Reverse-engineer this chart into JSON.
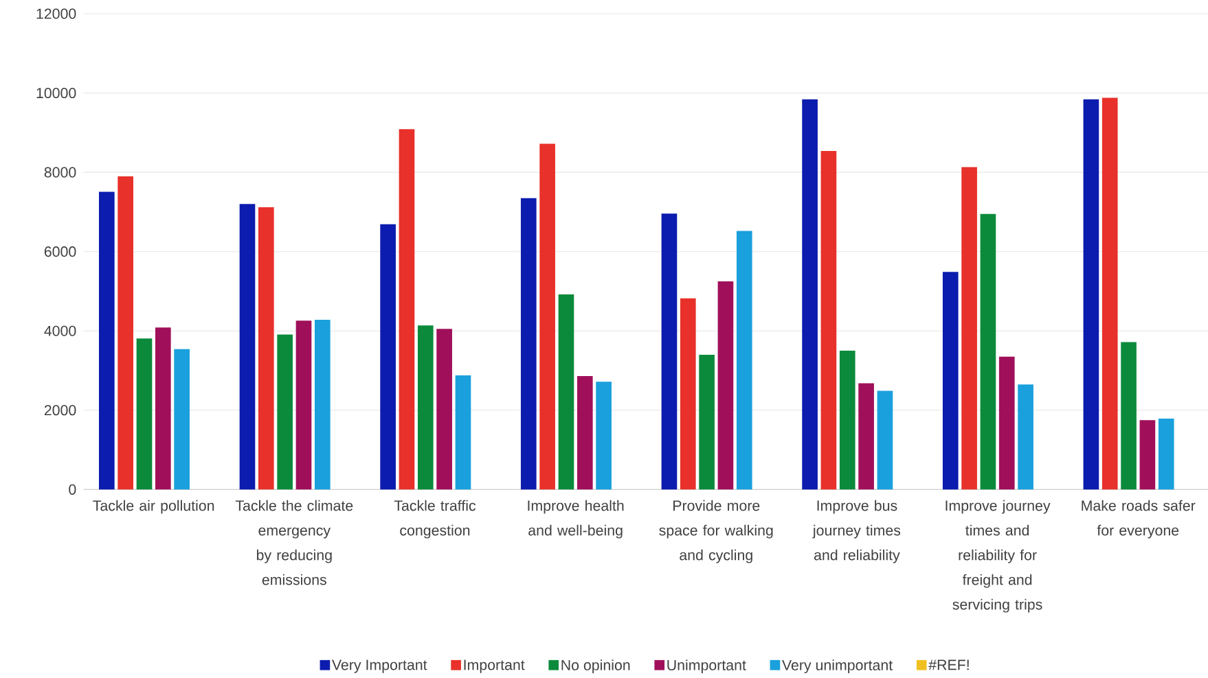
{
  "chart_data": {
    "type": "bar",
    "categories": [
      "Tackle air pollution",
      "Tackle the climate emergency by reducing emissions",
      "Tackle traffic congestion",
      "Improve health and well-being",
      "Provide more space for walking and cycling",
      "Improve bus journey times and reliability",
      "Improve journey times and reliability for freight and servicing trips",
      "Make roads safer for everyone"
    ],
    "series": [
      {
        "name": "Very Important",
        "color": "#0c1cae",
        "values": [
          7510,
          7200,
          6690,
          7350,
          6960,
          9840,
          5490,
          9840
        ]
      },
      {
        "name": "Important",
        "color": "#e8312a",
        "values": [
          7900,
          7120,
          9090,
          8720,
          4820,
          8540,
          8130,
          9880
        ]
      },
      {
        "name": "No opinion",
        "color": "#0c8a3c",
        "values": [
          3810,
          3910,
          4140,
          4920,
          3400,
          3500,
          6950,
          3720
        ]
      },
      {
        "name": "Unimportant",
        "color": "#a0105a",
        "values": [
          4085,
          4260,
          4050,
          2860,
          5250,
          2680,
          3350,
          1750
        ]
      },
      {
        "name": "Very unimportant",
        "color": "#1aa0dc",
        "values": [
          3540,
          4280,
          2880,
          2720,
          6520,
          2490,
          2650,
          1790
        ]
      },
      {
        "name": "#REF!",
        "color": "#f0c020",
        "values": [
          null,
          null,
          null,
          null,
          null,
          null,
          null,
          null
        ]
      }
    ],
    "ylim": [
      0,
      12000
    ],
    "yticks": [
      0,
      2000,
      4000,
      6000,
      8000,
      10000,
      12000
    ],
    "grid": "y",
    "legend": "bottom"
  }
}
